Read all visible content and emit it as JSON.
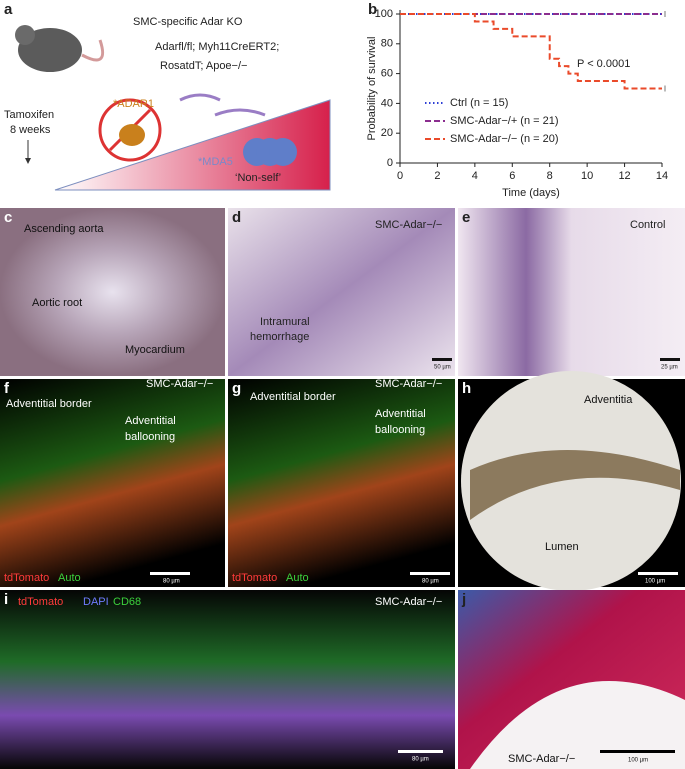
{
  "chart_data": {
    "type": "line",
    "x_label": "Time (days)",
    "y_label": "Probability of survival",
    "annotation": "P < 0.0001",
    "xlim": [
      0,
      14
    ],
    "xticks": [
      0,
      2,
      4,
      6,
      8,
      10,
      12,
      14
    ],
    "ylim": [
      0,
      100
    ],
    "yticks": [
      0,
      20,
      40,
      60,
      80,
      100
    ],
    "series": [
      {
        "name": "Ctrl (n = 15)",
        "color": "#2e3fd6",
        "dash": "1.5,2.5",
        "x": [
          0,
          14
        ],
        "values": [
          100,
          100
        ]
      },
      {
        "name": "SMC-Adar−/+ (n = 21)",
        "color": "#8b2d8f",
        "dash": "6,3",
        "x": [
          0,
          14
        ],
        "values": [
          100,
          100
        ]
      },
      {
        "name": "SMC-Adar−/− (n = 20)",
        "color": "#ea4a2a",
        "dash": "6,3",
        "x": [
          0,
          4,
          5,
          6,
          8,
          8.5,
          9,
          9.5,
          12,
          14
        ],
        "values": [
          100,
          95,
          90,
          85,
          70,
          65,
          60,
          55,
          50,
          50
        ]
      }
    ]
  },
  "panels": {
    "a": {
      "label": "a",
      "title": "SMC-specific Adar KO",
      "genotype_1": "Adarfl/fl; Myh11CreERT2;",
      "genotype_2": "RosatdT; Apoe−/−",
      "treatment_1": "Tamoxifen",
      "treatment_2": "8 weeks",
      "adar1": "*ADAR1",
      "mda5": "*MDA5",
      "nonself": "‘Non-self’"
    },
    "b": {
      "label": "b"
    },
    "c": {
      "label": "c",
      "texts": [
        "Ascending aorta",
        "Aortic root",
        "Myocardium"
      ]
    },
    "d": {
      "label": "d",
      "genotype": "SMC-Adar−/−",
      "texts": [
        "Intramural",
        "hemorrhage"
      ],
      "scale": "50 µm"
    },
    "e": {
      "label": "e",
      "condition": "Control",
      "scale": "25 µm"
    },
    "f": {
      "label": "f",
      "genotype": "SMC-Adar−/−",
      "texts": [
        "Adventitial border",
        "Adventitial",
        "ballooning"
      ],
      "stain_1": "tdTomato",
      "stain_2": "Auto",
      "scale": "80 µm"
    },
    "g": {
      "label": "g",
      "genotype": "SMC-Adar−/−",
      "texts": [
        "Adventitial border",
        "Adventitial",
        "ballooning"
      ],
      "stain_1": "tdTomato",
      "stain_2": "Auto",
      "scale": "80 µm"
    },
    "h": {
      "label": "h",
      "texts": [
        "Adventitia",
        "Lumen"
      ],
      "scale": "100 µm"
    },
    "i": {
      "label": "i",
      "stain_1": "tdTomato",
      "stain_2": "DAPI",
      "stain_3": "CD68",
      "genotype": "SMC-Adar−/−",
      "scale": "80 µm"
    },
    "j": {
      "label": "j",
      "genotype": "SMC-Adar−/−",
      "scale": "100 µm"
    }
  }
}
